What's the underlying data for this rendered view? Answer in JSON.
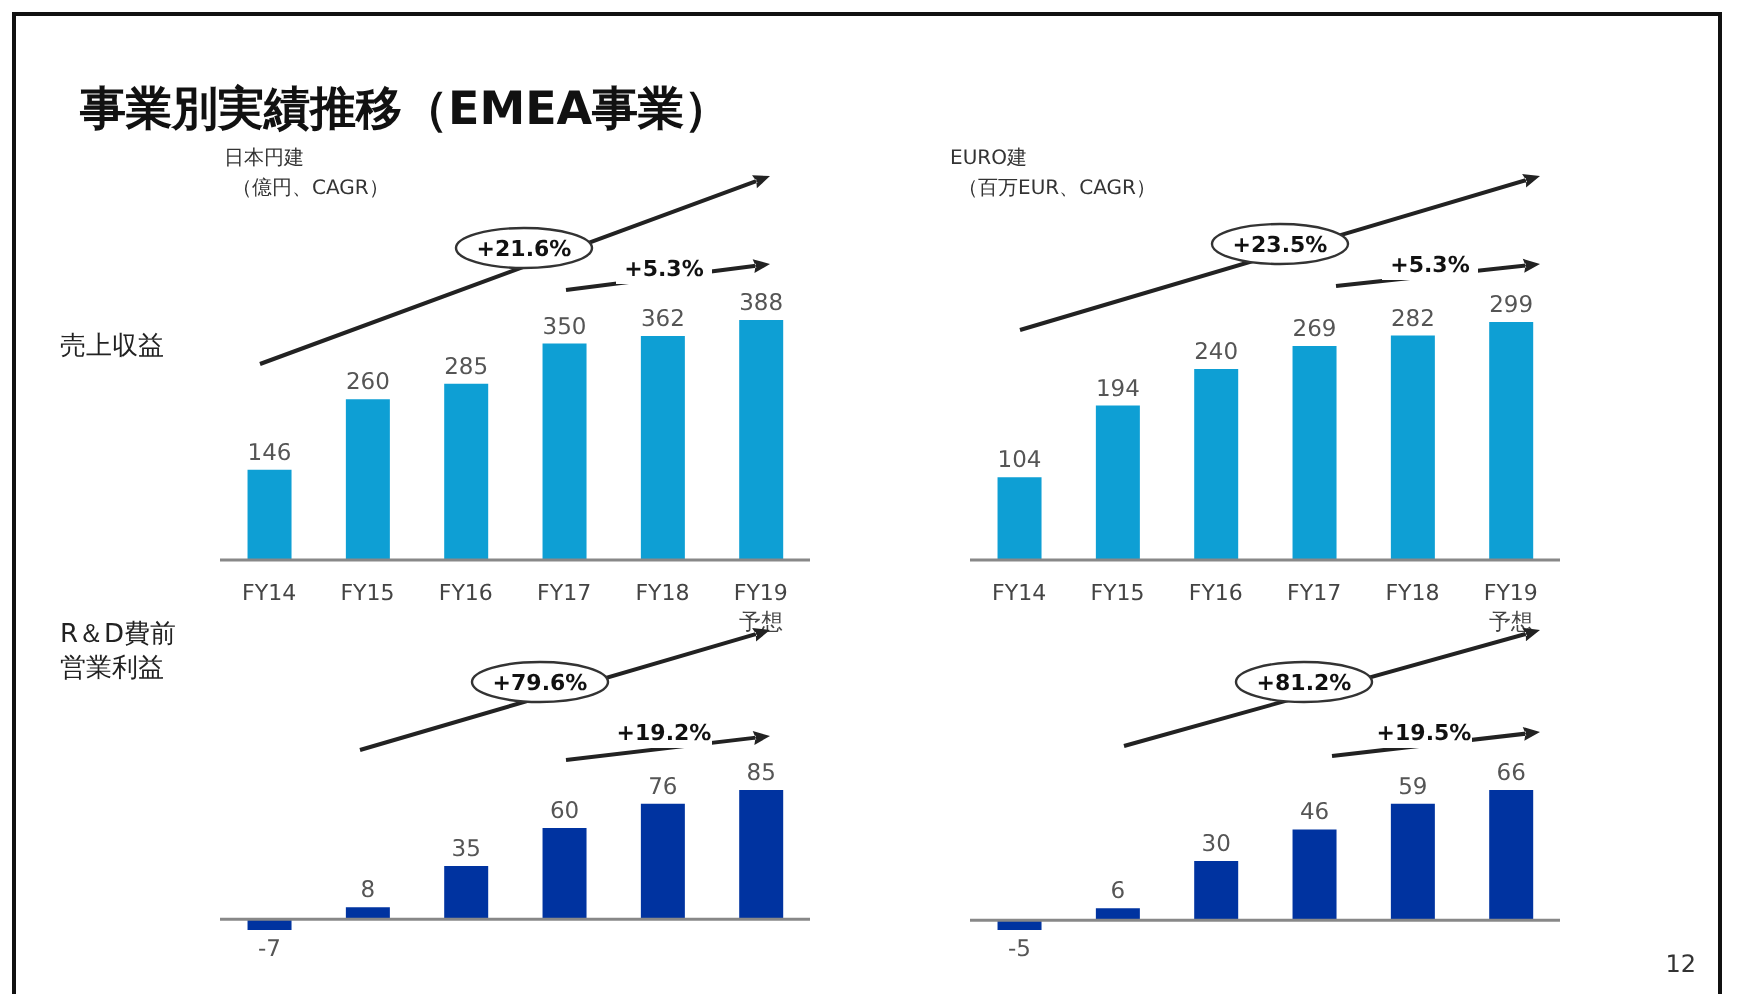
{
  "chart_data": [
    {
      "type": "bar",
      "title": "事業別実績推移（EMEA事業）",
      "subtitle": "日本円建",
      "ylabel": "売上収益",
      "categories": [
        "FY14",
        "FY15",
        "FY16",
        "FY17",
        "FY18",
        "FY19\n予想"
      ],
      "values": [
        146,
        260,
        285,
        350,
        362,
        388
      ],
      "color": "#0e9fd4",
      "data_labels": true,
      "annotations": [
        "（億円、CAGR）",
        "+21.6%",
        "+5.3%"
      ]
    },
    {
      "type": "bar",
      "subtitle": "EURO建",
      "categories": [
        "FY14",
        "FY15",
        "FY16",
        "FY17",
        "FY18",
        "FY19\n予想"
      ],
      "values": [
        104,
        194,
        240,
        269,
        282,
        299
      ],
      "color": "#0e9fd4",
      "data_labels": true,
      "annotations": [
        "（百万EUR、CAGR）",
        "+23.5%",
        "+5.3%"
      ]
    },
    {
      "type": "bar",
      "ylabel": "R＆D費前営業利益",
      "categories": [
        null,
        null,
        null,
        null,
        null,
        null
      ],
      "values": [
        -7,
        8,
        35,
        60,
        76,
        85
      ],
      "color": "#0033a0",
      "data_labels": true,
      "annotations": [
        "+79.6%",
        "+19.2%"
      ]
    },
    {
      "type": "bar",
      "categories": [
        null,
        null,
        null,
        null,
        null,
        null
      ],
      "values": [
        -5,
        6,
        30,
        46,
        59,
        66
      ],
      "color": "#0033a0",
      "data_labels": true,
      "annotations": [
        "+81.2%",
        "+19.5%",
        "12"
      ]
    }
  ]
}
